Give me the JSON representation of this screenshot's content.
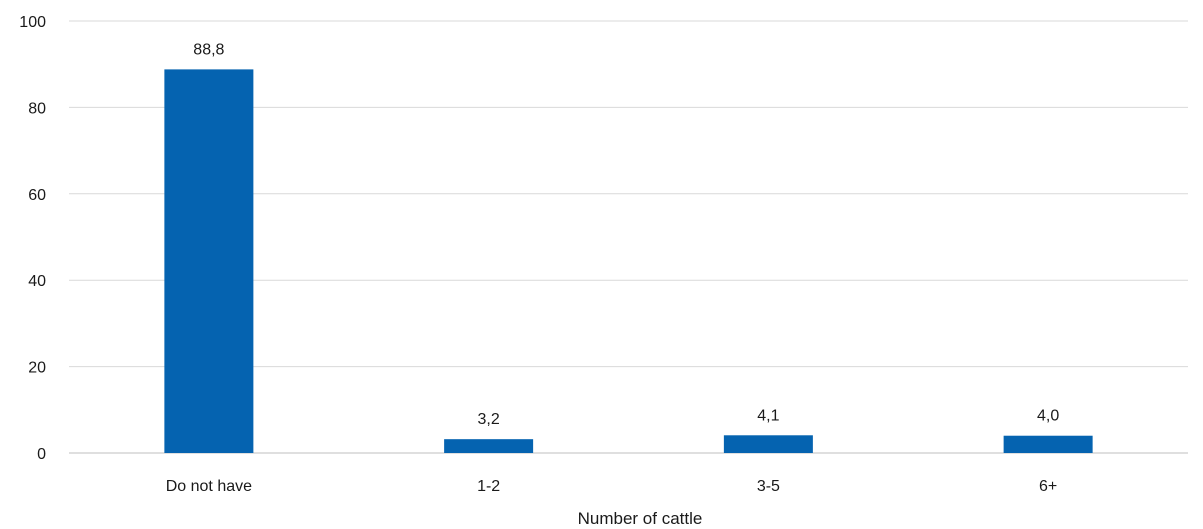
{
  "chart_data": {
    "type": "bar",
    "categories": [
      "Do not have",
      "1-2",
      "3-5",
      "6+"
    ],
    "values": [
      88.8,
      3.2,
      4.1,
      4.0
    ],
    "data_labels": [
      "88,8",
      "3,2",
      "4,1",
      "4,0"
    ],
    "xlabel": "Number of cattle",
    "ylabel": "",
    "ylim": [
      0,
      100
    ],
    "yticks": [
      0,
      20,
      40,
      60,
      80,
      100
    ],
    "grid": true,
    "legend": "none",
    "bar_color": "#0563b0"
  }
}
